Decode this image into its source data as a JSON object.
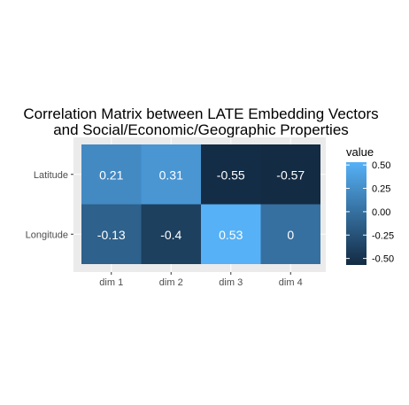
{
  "chart_data": {
    "type": "heatmap",
    "title_lines": [
      "Correlation Matrix between LATE Embedding Vectors",
      "and Social/Economic/Geographic Properties"
    ],
    "x_categories": [
      "dim 1",
      "dim 2",
      "dim 3",
      "dim 4"
    ],
    "y_categories": [
      "Latitude",
      "Longitude"
    ],
    "values": [
      [
        0.21,
        0.31,
        -0.55,
        -0.57
      ],
      [
        -0.13,
        -0.4,
        0.53,
        0
      ]
    ],
    "cell_labels": [
      [
        "0.21",
        "0.31",
        "-0.55",
        "-0.57"
      ],
      [
        "-0.13",
        "-0.4",
        "0.53",
        "0"
      ]
    ],
    "legend": {
      "title": "value",
      "ticks": [
        0.5,
        0.25,
        0.0,
        -0.25,
        -0.5
      ],
      "tick_labels": [
        "0.50",
        "0.25",
        "0.00",
        "-0.25",
        "-0.50"
      ],
      "range": [
        -0.57,
        0.53
      ],
      "placement": "right"
    },
    "colors": {
      "low": "#132B43",
      "high": "#56B1F7",
      "panel_background": "#EBEBEB",
      "grid": "#FFFFFF",
      "cell_text": "#FFFFFF"
    },
    "grid": true
  }
}
